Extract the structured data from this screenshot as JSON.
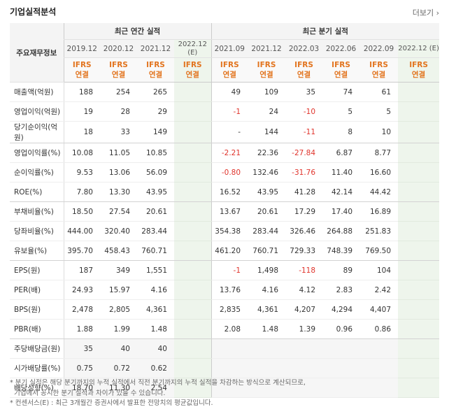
{
  "title": "기업실적분석",
  "more": "더보기 ›",
  "corner_label": "주요재무정보",
  "groups": {
    "annual": "최근 연간 실적",
    "quarter": "최근 분기 실적"
  },
  "periods": [
    "2019.12",
    "2020.12",
    "2021.12",
    "2022.12\n(E)",
    "2021.09",
    "2021.12",
    "2022.03",
    "2022.06",
    "2022.09",
    "2022.12 (E)"
  ],
  "ifrs": [
    "IFRS\n연결",
    "IFRS\n연결",
    "IFRS\n연결",
    "IFRS\n연결",
    "IFRS\n연결",
    "IFRS\n연결",
    "IFRS\n연결",
    "IFRS\n연결",
    "IFRS\n연결",
    "IFRS\n연결"
  ],
  "rows": [
    {
      "label": "매출액(억원)",
      "values": [
        "188",
        "254",
        "265",
        "",
        "49",
        "109",
        "35",
        "74",
        "61",
        ""
      ]
    },
    {
      "label": "영업이익(억원)",
      "values": [
        "19",
        "28",
        "29",
        "",
        "-1",
        "24",
        "-10",
        "5",
        "5",
        ""
      ]
    },
    {
      "label": "당기순이익(억원)",
      "values": [
        "18",
        "33",
        "149",
        "",
        "-",
        "144",
        "-11",
        "8",
        "10",
        ""
      ]
    },
    {
      "label": "영업이익률(%)",
      "values": [
        "10.08",
        "11.05",
        "10.85",
        "",
        "-2.21",
        "22.36",
        "-27.84",
        "6.87",
        "8.77",
        ""
      ]
    },
    {
      "label": "순이익률(%)",
      "values": [
        "9.53",
        "13.06",
        "56.09",
        "",
        "-0.80",
        "132.46",
        "-31.76",
        "11.40",
        "16.60",
        ""
      ]
    },
    {
      "label": "ROE(%)",
      "values": [
        "7.80",
        "13.30",
        "43.95",
        "",
        "16.52",
        "43.95",
        "41.28",
        "42.14",
        "44.42",
        ""
      ]
    },
    {
      "label": "부채비율(%)",
      "values": [
        "18.50",
        "27.54",
        "20.61",
        "",
        "13.67",
        "20.61",
        "17.29",
        "17.40",
        "16.89",
        ""
      ]
    },
    {
      "label": "당좌비율(%)",
      "values": [
        "444.00",
        "320.40",
        "283.44",
        "",
        "354.38",
        "283.44",
        "326.46",
        "264.88",
        "251.83",
        ""
      ]
    },
    {
      "label": "유보율(%)",
      "values": [
        "395.70",
        "458.43",
        "760.71",
        "",
        "461.20",
        "760.71",
        "729.33",
        "748.39",
        "769.50",
        ""
      ]
    },
    {
      "label": "EPS(원)",
      "values": [
        "187",
        "349",
        "1,551",
        "",
        "-1",
        "1,498",
        "-118",
        "89",
        "104",
        ""
      ]
    },
    {
      "label": "PER(배)",
      "values": [
        "24.93",
        "15.97",
        "4.16",
        "",
        "13.76",
        "4.16",
        "4.12",
        "2.83",
        "2.42",
        ""
      ]
    },
    {
      "label": "BPS(원)",
      "values": [
        "2,478",
        "2,805",
        "4,361",
        "",
        "2,835",
        "4,361",
        "4,207",
        "4,294",
        "4,407",
        ""
      ]
    },
    {
      "label": "PBR(배)",
      "values": [
        "1.88",
        "1.99",
        "1.48",
        "",
        "2.08",
        "1.48",
        "1.39",
        "0.96",
        "0.86",
        ""
      ]
    },
    {
      "label": "주당배당금(원)",
      "values": [
        "35",
        "40",
        "40",
        "",
        "",
        "",
        "",
        "",
        "",
        ""
      ]
    },
    {
      "label": "시가배당률(%)",
      "values": [
        "0.75",
        "0.72",
        "0.62",
        "",
        "",
        "",
        "",
        "",
        "",
        ""
      ]
    },
    {
      "label": "배당성향(%)",
      "values": [
        "18.70",
        "11.30",
        "2.54",
        "",
        "",
        "",
        "",
        "",
        "",
        ""
      ]
    }
  ],
  "notes": [
    "* 분기 실적은 해당 분기까지의 누적 실적에서 직전 분기까지의 누적 실적을 차감하는 방식으로 계산되므로,",
    "  기업에서 공시한 분기 실적과 차이가 있을 수 있습니다.",
    "* 컨센서스(E) : 최근 3개월간 증권사에서 발표한 전망치의 평균값입니다."
  ]
}
